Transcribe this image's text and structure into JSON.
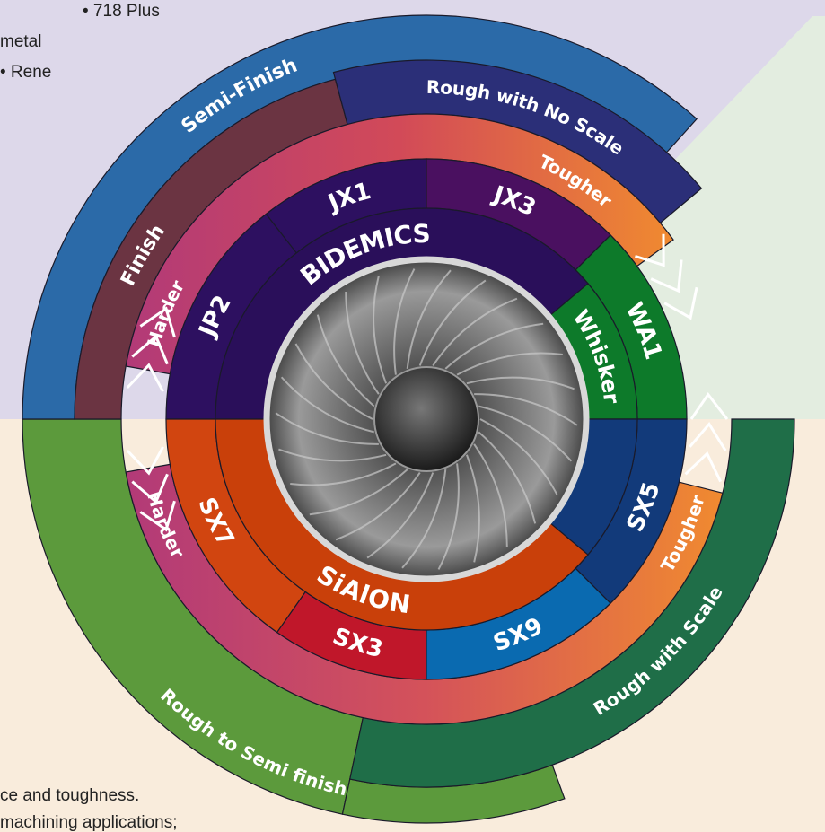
{
  "partial_text": {
    "top_left": [
      "• 718 Plus",
      "metal",
      "• Rene"
    ],
    "bottom_left": [
      "ce and toughness.",
      "machining applications;"
    ]
  },
  "families": [
    "BIDEMICS",
    "Whisker",
    "SiAlON"
  ],
  "grades": [
    "JP2",
    "JX1",
    "JX3",
    "WA1",
    "SX7",
    "SX3",
    "SX9",
    "SX5"
  ],
  "properties": [
    "Harder",
    "Tougher",
    "Harder",
    "Tougher"
  ],
  "machining": [
    "Finish",
    "Semi-Finish",
    "Rough with No Scale",
    "Rough to Semi finish",
    "Rough with Scale"
  ]
}
